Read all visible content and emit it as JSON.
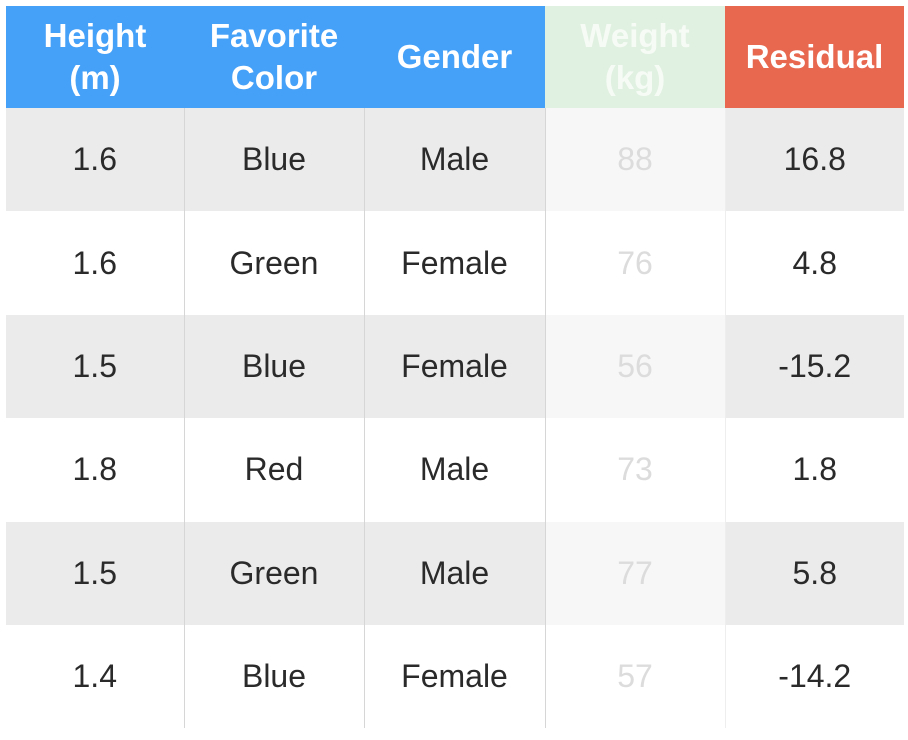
{
  "table": {
    "headers": [
      {
        "line1": "Height",
        "line2": "(m)"
      },
      {
        "line1": "Favorite",
        "line2": "Color"
      },
      {
        "line1": "Gender",
        "line2": ""
      },
      {
        "line1": "Weight",
        "line2": "(kg)"
      },
      {
        "line1": "Residual",
        "line2": ""
      }
    ],
    "rows": [
      {
        "height": "1.6",
        "color": "Blue",
        "gender": "Male",
        "weight": "88",
        "residual": "16.8"
      },
      {
        "height": "1.6",
        "color": "Green",
        "gender": "Female",
        "weight": "76",
        "residual": "4.8"
      },
      {
        "height": "1.5",
        "color": "Blue",
        "gender": "Female",
        "weight": "56",
        "residual": "-15.2"
      },
      {
        "height": "1.8",
        "color": "Red",
        "gender": "Male",
        "weight": "73",
        "residual": "1.8"
      },
      {
        "height": "1.5",
        "color": "Green",
        "gender": "Male",
        "weight": "77",
        "residual": "5.8"
      },
      {
        "height": "1.4",
        "color": "Blue",
        "gender": "Female",
        "weight": "57",
        "residual": "-14.2"
      }
    ]
  },
  "colors": {
    "header_blue": "#45a0f8",
    "header_weight_green": "#e1f1e1",
    "header_residual_red": "#e8684f",
    "row_stripe_gray": "#ebebeb"
  }
}
